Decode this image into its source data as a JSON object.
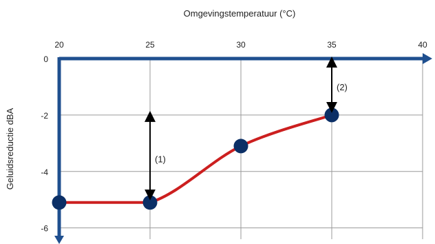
{
  "chart_data": {
    "type": "line",
    "xlabel": "Omgevingstemperatuur (°C)",
    "ylabel": "Geluidsreductie dBA",
    "xlim": [
      20,
      40
    ],
    "ylim": [
      -6.4,
      0
    ],
    "x_ticks": [
      "20",
      "25",
      "30",
      "35",
      "40"
    ],
    "y_ticks": [
      "0",
      "-2",
      "-4",
      "-6"
    ],
    "x_tick_values": [
      20,
      25,
      30,
      35,
      40
    ],
    "y_tick_values": [
      0,
      -2,
      -4,
      -6
    ],
    "grid": true,
    "series": [
      {
        "x": [
          20,
          25,
          30,
          35
        ],
        "y": [
          -5.1,
          -5.1,
          -3.1,
          -2.0
        ],
        "color": "#cc1f1f",
        "marker_color": "#0b2f66"
      }
    ],
    "annotations": [
      {
        "label": "(1)",
        "x": 25,
        "y_from": -2.0,
        "y_to": -5.1
      },
      {
        "label": "(2)",
        "x": 35,
        "y_from": 0,
        "y_to": -2.0
      }
    ],
    "axis_color": "#1f4f8f"
  }
}
